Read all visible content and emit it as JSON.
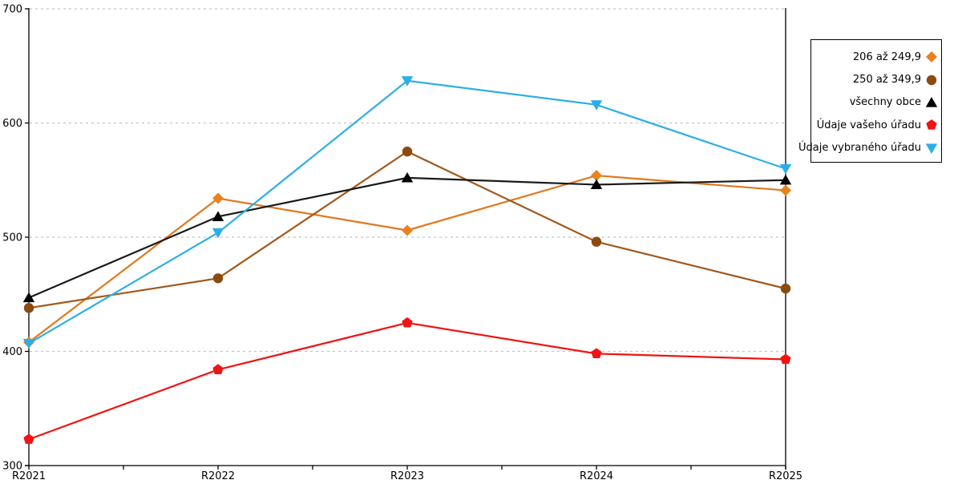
{
  "chart_data": {
    "type": "line",
    "title": "",
    "xlabel": "",
    "ylabel": "",
    "x_categories": [
      "R2021",
      "R2022",
      "R2023",
      "R2024",
      "R2025"
    ],
    "series": [
      {
        "name": "206 až 249,9",
        "marker": "diamond",
        "line_color": "#E2771C",
        "marker_color": "#E8821E",
        "values": [
          408,
          534,
          506,
          554,
          541
        ]
      },
      {
        "name": "250 až 349,9",
        "marker": "circle",
        "line_color": "#A0581B",
        "marker_color": "#8B4A10",
        "values": [
          438,
          464,
          575,
          496,
          455
        ]
      },
      {
        "name": "všechny obce",
        "marker": "triangle-up",
        "line_color": "#1A1A1A",
        "marker_color": "#000000",
        "values": [
          447,
          518,
          552,
          546,
          550
        ]
      },
      {
        "name": "Údaje vašeho úřadu",
        "marker": "pentagon",
        "line_color": "#F01414",
        "marker_color": "#F01414",
        "values": [
          323,
          384,
          425,
          398,
          393
        ]
      },
      {
        "name": "Údaje vybraného úřadu",
        "marker": "triangle-down",
        "line_color": "#2BAEE8",
        "marker_color": "#2BAEE8",
        "values": [
          407,
          504,
          637,
          616,
          560
        ]
      }
    ],
    "ylim": [
      300,
      700
    ],
    "yticks": [
      300,
      400,
      500,
      600,
      700
    ],
    "grid": "horizontal dashed gridlines at 400,500,600,700",
    "legend_position": "outside top-right",
    "axis_color": "#000000",
    "grid_color": "#C4C4C4",
    "background_color": "#FFFFFF"
  }
}
